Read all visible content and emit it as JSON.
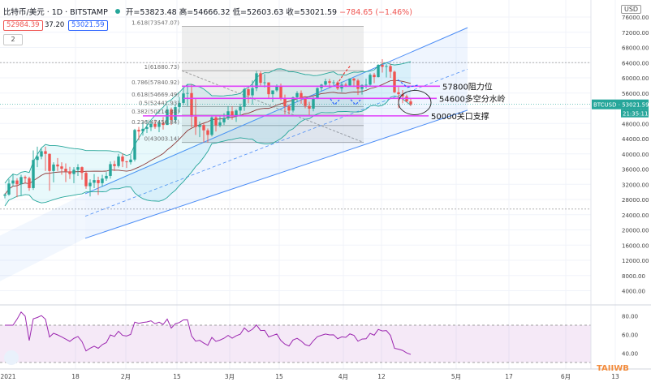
{
  "header": {
    "symbol": "比特币/美元 · 1D · BITSTAMP",
    "ohlc": "开=53823.48 高=54666.32 低=52603.63 收=53021.59",
    "change": "−784.65 (−1.46%)",
    "bid": "52984.39",
    "spread": "37.20",
    "ask": "53021.59",
    "layers": "2"
  },
  "currency": "USD",
  "ticker_label": "BTCUSD",
  "last_price": "53021.59",
  "countdown": "21:35:11",
  "watermark": "TAIIWB",
  "colors": {
    "up": "#26a69a",
    "down": "#ef5350",
    "magenta": "#e040fb",
    "channel": "#4c8df6",
    "rsi": "#9c27b0",
    "fib_box": "#d0d0d0"
  },
  "chart_data": {
    "type": "candlestick",
    "y_axis": {
      "ticks": [
        4000,
        8000,
        12000,
        16000,
        20000,
        24000,
        28000,
        32000,
        36000,
        40000,
        44000,
        48000,
        52000,
        56000,
        60000,
        64000,
        68000,
        72000,
        76000
      ],
      "tick_labels": [
        "4000.00",
        "8000.00",
        "12000.00",
        "16000.00",
        "20000.00",
        "24000.00",
        "28000.00",
        "32000.00",
        "36000.00",
        "40000.00",
        "44000.00",
        "48000.00",
        "52000.00",
        "56000.00",
        "60000.00",
        "64000.00",
        "68000.00",
        "72000.00",
        "76000.00"
      ],
      "range": [
        0,
        78000
      ]
    },
    "x_axis": {
      "labels": [
        "2021",
        "18",
        "2月",
        "15",
        "3月",
        "15",
        "4月",
        "12",
        "5月",
        "17",
        "6月",
        "13"
      ]
    },
    "fibonacci": [
      {
        "label": "1.618(73547.07)",
        "value": 73547.07
      },
      {
        "label": "1(61880.73)",
        "value": 61880.73
      },
      {
        "label": "0.786(57840.92)",
        "value": 57840.92
      },
      {
        "label": "0.618(54669.49)",
        "value": 54669.49
      },
      {
        "label": "0.5(52441.93)",
        "value": 52441.93
      },
      {
        "label": "0.382(50214.38)",
        "value": 50214.38
      },
      {
        "label": "0.236(47456.84)",
        "value": 47456.84
      },
      {
        "label": "0(43003.14)",
        "value": 43003.14
      }
    ],
    "annotations": [
      {
        "text": "57800阻力位",
        "value": 57800
      },
      {
        "text": "54600多空分水岭",
        "value": 54600
      },
      {
        "text": "50000关口支撑",
        "value": 50000
      }
    ],
    "candles": [
      [
        29000,
        29600,
        28300,
        29300
      ],
      [
        29300,
        33300,
        29000,
        32200
      ],
      [
        32200,
        34800,
        31500,
        33000
      ],
      [
        33000,
        33600,
        28600,
        32000
      ],
      [
        32000,
        34500,
        29000,
        33900
      ],
      [
        33900,
        34300,
        32300,
        33600
      ],
      [
        33600,
        34000,
        30300,
        31000
      ],
      [
        31000,
        40900,
        30500,
        38400
      ],
      [
        38400,
        41900,
        36500,
        39300
      ],
      [
        39300,
        41400,
        38600,
        40700
      ],
      [
        40700,
        41900,
        35500,
        40000
      ],
      [
        40000,
        40100,
        30300,
        35500
      ],
      [
        35500,
        37800,
        32500,
        37200
      ],
      [
        37200,
        38900,
        35500,
        36700
      ],
      [
        36700,
        37800,
        34500,
        36100
      ],
      [
        36100,
        37500,
        32600,
        35400
      ],
      [
        35400,
        36600,
        33400,
        34700
      ],
      [
        34700,
        36500,
        32300,
        35800
      ],
      [
        35800,
        37300,
        34200,
        36500
      ],
      [
        36500,
        36700,
        33200,
        35000
      ],
      [
        35000,
        35400,
        30800,
        31500
      ],
      [
        31500,
        33300,
        28800,
        32400
      ],
      [
        32400,
        34700,
        31000,
        33100
      ],
      [
        33100,
        34000,
        29200,
        32300
      ],
      [
        32300,
        34500,
        31400,
        33500
      ],
      [
        33500,
        35200,
        32900,
        34200
      ],
      [
        34200,
        38000,
        33500,
        37300
      ],
      [
        37300,
        38200,
        35500,
        36800
      ],
      [
        36800,
        40000,
        36400,
        39300
      ],
      [
        39300,
        40100,
        36500,
        38000
      ],
      [
        38000,
        38200,
        36300,
        37800
      ],
      [
        37800,
        39700,
        37200,
        38500
      ],
      [
        38500,
        46600,
        38000,
        46300
      ],
      [
        46300,
        47100,
        43600,
        45900
      ],
      [
        45900,
        48500,
        44800,
        46600
      ],
      [
        46600,
        48900,
        45500,
        47000
      ],
      [
        47000,
        48700,
        46000,
        47900
      ],
      [
        47900,
        49000,
        46600,
        47100
      ],
      [
        47100,
        48700,
        45700,
        48200
      ],
      [
        48200,
        49700,
        46400,
        47600
      ],
      [
        47600,
        52600,
        47600,
        51700
      ],
      [
        51700,
        52200,
        47600,
        48900
      ],
      [
        48900,
        53000,
        48400,
        52300
      ],
      [
        52300,
        55000,
        50900,
        53400
      ],
      [
        53400,
        57500,
        52800,
        55900
      ],
      [
        55900,
        58400,
        52600,
        56000
      ],
      [
        56000,
        58300,
        47000,
        49800
      ],
      [
        49800,
        54500,
        45000,
        47100
      ],
      [
        47100,
        48500,
        44400,
        47600
      ],
      [
        47600,
        48000,
        43000,
        46200
      ],
      [
        46200,
        46700,
        43000,
        45000
      ],
      [
        45000,
        50000,
        44600,
        49600
      ],
      [
        49600,
        50000,
        45900,
        47500
      ],
      [
        47500,
        50000,
        47000,
        48300
      ],
      [
        48300,
        50700,
        47600,
        49400
      ],
      [
        49400,
        52600,
        48900,
        51200
      ],
      [
        51200,
        52500,
        49000,
        49900
      ],
      [
        49900,
        51800,
        48400,
        51400
      ],
      [
        51400,
        53200,
        50000,
        52400
      ],
      [
        52400,
        57400,
        51300,
        57000
      ],
      [
        57000,
        57300,
        53300,
        55400
      ],
      [
        55400,
        59300,
        53000,
        57300
      ],
      [
        57300,
        61800,
        56500,
        61200
      ],
      [
        61200,
        61700,
        58000,
        58700
      ],
      [
        58700,
        61000,
        57500,
        58800
      ],
      [
        58800,
        58800,
        54700,
        55700
      ],
      [
        55700,
        56700,
        53600,
        56700
      ],
      [
        56700,
        58300,
        56300,
        57700
      ],
      [
        57700,
        58500,
        54000,
        54500
      ],
      [
        54500,
        55600,
        50400,
        52500
      ],
      [
        52500,
        53000,
        50400,
        51400
      ],
      [
        51400,
        55100,
        50900,
        54900
      ],
      [
        54900,
        56500,
        53600,
        56000
      ],
      [
        56000,
        56700,
        53200,
        54600
      ],
      [
        54600,
        55200,
        52000,
        52600
      ],
      [
        52600,
        53700,
        50300,
        51900
      ],
      [
        51900,
        55000,
        51200,
        54700
      ],
      [
        54700,
        57500,
        54400,
        57300
      ],
      [
        57300,
        58400,
        56500,
        58200
      ],
      [
        58200,
        59800,
        57700,
        59100
      ],
      [
        59100,
        59700,
        57300,
        58700
      ],
      [
        58700,
        59400,
        58000,
        58800
      ],
      [
        58800,
        59200,
        56800,
        57200
      ],
      [
        57200,
        59000,
        56300,
        58200
      ],
      [
        58200,
        58700,
        57600,
        58000
      ],
      [
        58000,
        59900,
        57800,
        59800
      ],
      [
        59800,
        60000,
        57600,
        59300
      ],
      [
        59300,
        59700,
        55500,
        57100
      ],
      [
        57100,
        58300,
        55600,
        58100
      ],
      [
        58100,
        59800,
        57200,
        58200
      ],
      [
        58200,
        61200,
        57800,
        60800
      ],
      [
        60800,
        61300,
        58600,
        60200
      ],
      [
        60200,
        63600,
        60100,
        63400
      ],
      [
        63400,
        64900,
        61400,
        62900
      ],
      [
        62900,
        63600,
        60100,
        63100
      ],
      [
        63100,
        63600,
        60000,
        61600
      ],
      [
        61600,
        61900,
        56000,
        56200
      ],
      [
        56200,
        57600,
        52000,
        55700
      ],
      [
        55700,
        56800,
        53300,
        55100
      ],
      [
        55100,
        55600,
        53600,
        53800
      ],
      [
        53800,
        54700,
        52600,
        53000
      ]
    ],
    "rsi": {
      "levels": [
        70,
        30
      ],
      "tick_labels": [
        "80.00",
        "60.00",
        "40.00"
      ],
      "tick_values": [
        80,
        60,
        40
      ]
    }
  }
}
